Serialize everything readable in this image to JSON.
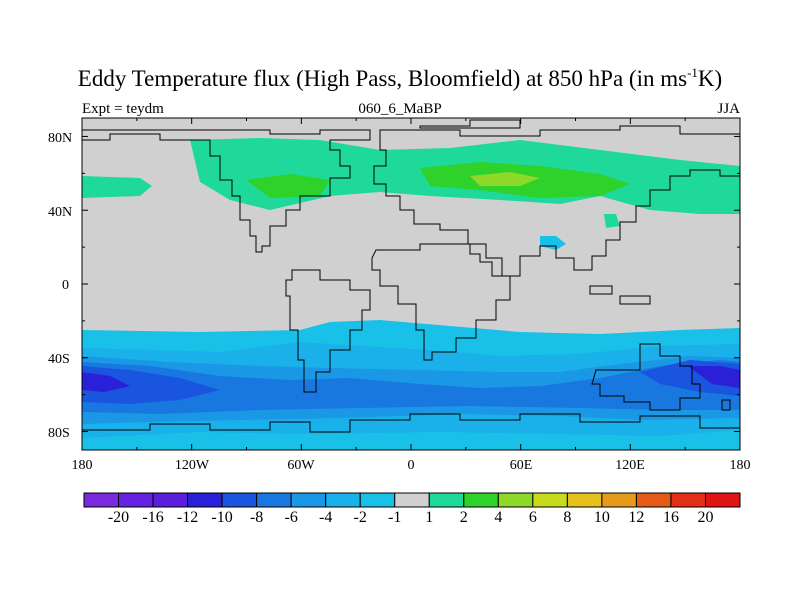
{
  "title": {
    "main": "Eddy Temperature flux (High Pass, Bloomfield) at 850 hPa (in ms",
    "sup": "-1",
    "unit_end": "K)"
  },
  "subtitles": {
    "left": "Expt = teydm",
    "center": "060_6_MaBP",
    "right": "JJA"
  },
  "map": {
    "projection": "cylindrical-equidistant",
    "lon_range": [
      -180,
      180
    ],
    "lat_range": [
      -90,
      90
    ],
    "lat_labels": [
      "80N",
      "40N",
      "0",
      "40S",
      "80S"
    ],
    "lon_labels": [
      "180",
      "120W",
      "60W",
      "0",
      "60E",
      "120E",
      "180"
    ],
    "background_color": "#d0d0d0"
  },
  "colorbar": {
    "labels": [
      "-20",
      "-16",
      "-12",
      "-10",
      "-8",
      "-6",
      "-4",
      "-2",
      "-1",
      "1",
      "2",
      "4",
      "6",
      "8",
      "10",
      "12",
      "16",
      "20"
    ],
    "colors": [
      "#7a2be0",
      "#6622e0",
      "#5a1fd8",
      "#2a20d8",
      "#1a55e0",
      "#1978e0",
      "#1a98e6",
      "#1ab0ea",
      "#19c0e8",
      "#d0d0d0",
      "#1ed99a",
      "#2fd22a",
      "#8ed82a",
      "#c8dc1e",
      "#e6c01c",
      "#e69a1a",
      "#e45a16",
      "#e23016",
      "#e01414"
    ]
  }
}
